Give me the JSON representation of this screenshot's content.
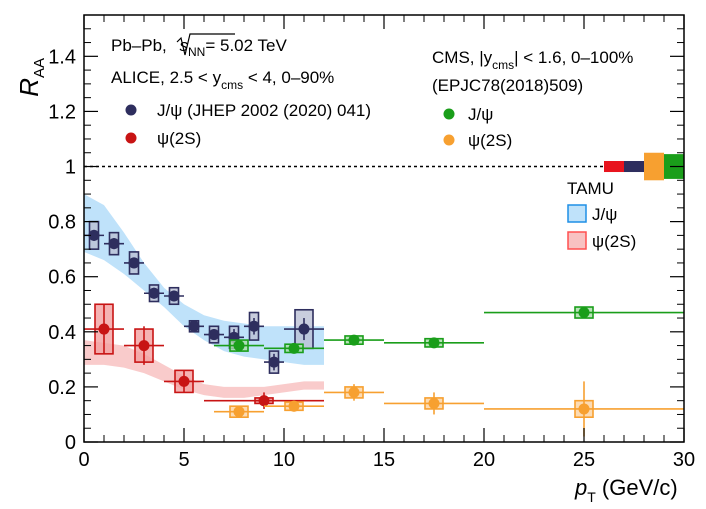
{
  "chart_data": {
    "type": "scatter",
    "title": "",
    "xlabel": {
      "main": "p",
      "sub": "T",
      "unit": " (GeV/c)"
    },
    "ylabel": {
      "main": "R",
      "sub": "AA"
    },
    "xlim": [
      0,
      30
    ],
    "ylim": [
      0,
      1.55
    ],
    "x_ticks": [
      0,
      5,
      10,
      15,
      20,
      25,
      30
    ],
    "y_ticks": [
      0,
      0.2,
      0.4,
      0.6,
      0.8,
      1,
      1.2,
      1.4
    ],
    "unity_line": 1,
    "annotations": {
      "system_prefix": "Pb–Pb, ",
      "sqrt_s": "s",
      "sqrt_s_sub": "NN",
      "energy": "= 5.02 TeV",
      "alice_label": "ALICE, 2.5 < y",
      "alice_sub": "cms",
      "alice_range": " < 4, 0–90%",
      "cms_label": "CMS, |y",
      "cms_sub": "cms",
      "cms_range": "| < 1.6, 0–100%",
      "cms_ref": "(EPJC78(2018)509)",
      "tamu_title": "TAMU"
    },
    "series": [
      {
        "name": "J/ψ (JHEP 2002 (2020) 041)",
        "color": "#2e2e5e",
        "box_fill": "#bcc0d4",
        "points": [
          {
            "x": 0.5,
            "y": 0.75,
            "xerr": 0.5,
            "stat": 0.02,
            "sys": 0.05
          },
          {
            "x": 1.5,
            "y": 0.72,
            "xerr": 0.5,
            "stat": 0.02,
            "sys": 0.04
          },
          {
            "x": 2.5,
            "y": 0.65,
            "xerr": 0.5,
            "stat": 0.02,
            "sys": 0.04
          },
          {
            "x": 3.5,
            "y": 0.54,
            "xerr": 0.5,
            "stat": 0.02,
            "sys": 0.03
          },
          {
            "x": 4.5,
            "y": 0.53,
            "xerr": 0.5,
            "stat": 0.02,
            "sys": 0.03
          },
          {
            "x": 5.5,
            "y": 0.42,
            "xerr": 0.5,
            "stat": 0.02,
            "sys": 0.02
          },
          {
            "x": 6.5,
            "y": 0.39,
            "xerr": 0.5,
            "stat": 0.02,
            "sys": 0.03
          },
          {
            "x": 7.5,
            "y": 0.38,
            "xerr": 0.5,
            "stat": 0.03,
            "sys": 0.04
          },
          {
            "x": 8.5,
            "y": 0.42,
            "xerr": 0.5,
            "stat": 0.03,
            "sys": 0.05
          },
          {
            "x": 9.5,
            "y": 0.29,
            "xerr": 0.5,
            "stat": 0.03,
            "sys": 0.04
          },
          {
            "x": 11.0,
            "y": 0.41,
            "xerr": 1.0,
            "stat": 0.04,
            "sys": 0.07
          }
        ]
      },
      {
        "name": "ψ(2S)",
        "color": "#c81414",
        "box_fill": "#f2a0a0",
        "points": [
          {
            "x": 1.0,
            "y": 0.41,
            "xerr": 1.0,
            "stat": 0.09,
            "sys": 0.09
          },
          {
            "x": 3.0,
            "y": 0.35,
            "xerr": 1.0,
            "stat": 0.07,
            "sys": 0.06
          },
          {
            "x": 5.0,
            "y": 0.22,
            "xerr": 1.0,
            "stat": 0.04,
            "sys": 0.04
          },
          {
            "x": 9.0,
            "y": 0.15,
            "xerr": 3.0,
            "stat": 0.03,
            "sys": 0.01
          }
        ]
      },
      {
        "name": "J/ψ",
        "color": "#1a9e1a",
        "box_fill": "#a8dca8",
        "points": [
          {
            "x": 7.75,
            "y": 0.35,
            "xerr": 1.25,
            "stat": 0.02,
            "sys": 0.02
          },
          {
            "x": 10.5,
            "y": 0.34,
            "xerr": 1.5,
            "stat": 0.01,
            "sys": 0.015
          },
          {
            "x": 13.5,
            "y": 0.37,
            "xerr": 1.5,
            "stat": 0.01,
            "sys": 0.015
          },
          {
            "x": 17.5,
            "y": 0.36,
            "xerr": 2.5,
            "stat": 0.01,
            "sys": 0.015
          },
          {
            "x": 25.0,
            "y": 0.47,
            "xerr": 5.0,
            "stat": 0.02,
            "sys": 0.02
          }
        ]
      },
      {
        "name": "ψ(2S)",
        "color": "#f7a030",
        "box_fill": "#fbd2a0",
        "points": [
          {
            "x": 7.75,
            "y": 0.11,
            "xerr": 1.25,
            "stat": 0.02,
            "sys": 0.02
          },
          {
            "x": 10.5,
            "y": 0.13,
            "xerr": 1.5,
            "stat": 0.02,
            "sys": 0.015
          },
          {
            "x": 13.5,
            "y": 0.18,
            "xerr": 1.5,
            "stat": 0.03,
            "sys": 0.02
          },
          {
            "x": 17.5,
            "y": 0.14,
            "xerr": 2.5,
            "stat": 0.04,
            "sys": 0.02
          },
          {
            "x": 25.0,
            "y": 0.12,
            "xerr": 5.0,
            "stat": 0.1,
            "sys": 0.03
          }
        ]
      }
    ],
    "model_bands": [
      {
        "name": "J/ψ",
        "fill": "#bfe2fa",
        "stroke": "#1f8fe6",
        "x": [
          0,
          1,
          2,
          3,
          4,
          5,
          6,
          7,
          8,
          9,
          10,
          11,
          12
        ],
        "upper": [
          0.9,
          0.86,
          0.76,
          0.65,
          0.56,
          0.5,
          0.46,
          0.44,
          0.43,
          0.42,
          0.42,
          0.42,
          0.42
        ],
        "lower": [
          0.69,
          0.66,
          0.61,
          0.55,
          0.49,
          0.42,
          0.37,
          0.33,
          0.31,
          0.3,
          0.29,
          0.28,
          0.28
        ]
      },
      {
        "name": "ψ(2S)",
        "fill": "#f8c2c2",
        "stroke": "#ff5050",
        "x": [
          0,
          1,
          2,
          3,
          4,
          5,
          6,
          7,
          8,
          9,
          10,
          11,
          12
        ],
        "upper": [
          0.37,
          0.36,
          0.35,
          0.32,
          0.28,
          0.24,
          0.21,
          0.2,
          0.2,
          0.2,
          0.21,
          0.22,
          0.22
        ],
        "lower": [
          0.28,
          0.28,
          0.27,
          0.25,
          0.22,
          0.19,
          0.17,
          0.16,
          0.16,
          0.17,
          0.18,
          0.19,
          0.19
        ]
      }
    ],
    "global_uncertainty_boxes": [
      {
        "series": "ψ(2S) ALICE",
        "color": "#e8141e",
        "x0": 26.0,
        "x1": 27.0,
        "half_height": 0.02
      },
      {
        "series": "J/ψ ALICE",
        "color": "#2e2e5e",
        "x0": 27.0,
        "x1": 28.0,
        "half_height": 0.02
      },
      {
        "series": "ψ(2S) CMS",
        "color": "#f7a030",
        "x0": 28.0,
        "x1": 29.0,
        "half_height": 0.05
      },
      {
        "series": "J/ψ CMS",
        "color": "#1a9e1a",
        "x0": 29.0,
        "x1": 30.0,
        "half_height": 0.045
      }
    ]
  }
}
